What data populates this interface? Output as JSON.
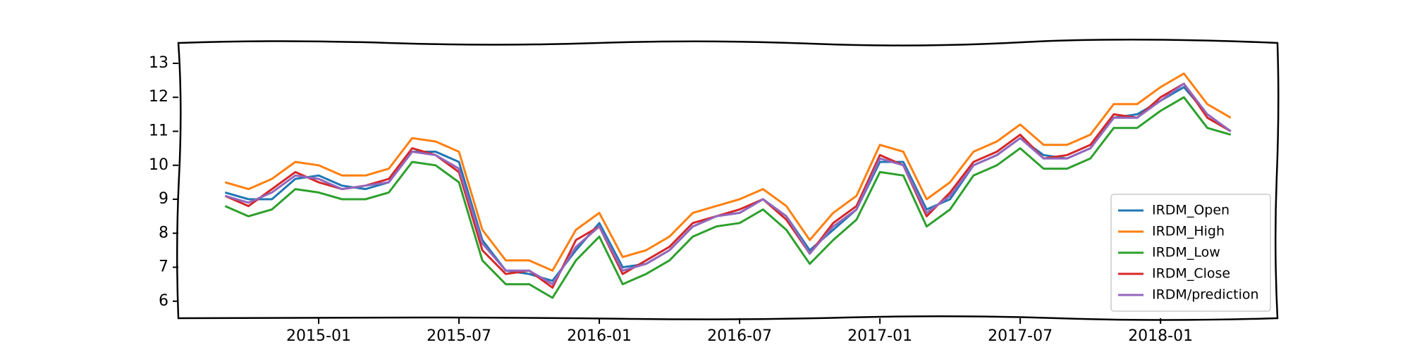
{
  "chart_data": {
    "type": "line",
    "x": [
      "2014-09",
      "2014-10",
      "2014-11",
      "2014-12",
      "2015-01",
      "2015-02",
      "2015-03",
      "2015-04",
      "2015-05",
      "2015-06",
      "2015-07",
      "2015-08",
      "2015-09",
      "2015-10",
      "2015-11",
      "2015-12",
      "2016-01",
      "2016-02",
      "2016-03",
      "2016-04",
      "2016-05",
      "2016-06",
      "2016-07",
      "2016-08",
      "2016-09",
      "2016-10",
      "2016-11",
      "2016-12",
      "2017-01",
      "2017-02",
      "2017-03",
      "2017-04",
      "2017-05",
      "2017-06",
      "2017-07",
      "2017-08",
      "2017-09",
      "2017-10",
      "2017-11",
      "2017-12",
      "2018-01",
      "2018-02",
      "2018-03",
      "2018-04"
    ],
    "series": [
      {
        "name": "IRDM_Open",
        "color": "#1f77b4",
        "values": [
          9.2,
          9.0,
          9.0,
          9.6,
          9.7,
          9.4,
          9.3,
          9.5,
          10.4,
          10.4,
          10.1,
          7.8,
          6.9,
          6.8,
          6.6,
          7.5,
          8.3,
          7.0,
          7.1,
          7.5,
          8.2,
          8.5,
          8.6,
          9.0,
          8.5,
          7.5,
          8.1,
          8.7,
          10.1,
          10.1,
          8.7,
          9.0,
          10.0,
          10.3,
          10.8,
          10.3,
          10.2,
          10.5,
          11.4,
          11.5,
          11.9,
          12.3,
          11.5,
          11.0
        ]
      },
      {
        "name": "IRDM_High",
        "color": "#ff7f0e",
        "values": [
          9.5,
          9.3,
          9.6,
          10.1,
          10.0,
          9.7,
          9.7,
          9.9,
          10.8,
          10.7,
          10.4,
          8.1,
          7.2,
          7.2,
          6.9,
          8.1,
          8.6,
          7.3,
          7.5,
          7.9,
          8.6,
          8.8,
          9.0,
          9.3,
          8.8,
          7.8,
          8.6,
          9.1,
          10.6,
          10.4,
          9.0,
          9.5,
          10.4,
          10.7,
          11.2,
          10.6,
          10.6,
          10.9,
          11.8,
          11.8,
          12.3,
          12.7,
          11.8,
          11.4
        ]
      },
      {
        "name": "IRDM_Low",
        "color": "#2ca02c",
        "values": [
          8.8,
          8.5,
          8.7,
          9.3,
          9.2,
          9.0,
          9.0,
          9.2,
          10.1,
          10.0,
          9.5,
          7.2,
          6.5,
          6.5,
          6.1,
          7.2,
          7.9,
          6.5,
          6.8,
          7.2,
          7.9,
          8.2,
          8.3,
          8.7,
          8.1,
          7.1,
          7.8,
          8.4,
          9.8,
          9.7,
          8.2,
          8.7,
          9.7,
          10.0,
          10.5,
          9.9,
          9.9,
          10.2,
          11.1,
          11.1,
          11.6,
          12.0,
          11.1,
          10.9
        ]
      },
      {
        "name": "IRDM_Close",
        "color": "#d62728",
        "values": [
          9.1,
          8.8,
          9.3,
          9.8,
          9.5,
          9.3,
          9.4,
          9.6,
          10.5,
          10.3,
          9.8,
          7.5,
          6.8,
          6.9,
          6.4,
          7.8,
          8.2,
          6.8,
          7.2,
          7.6,
          8.3,
          8.5,
          8.7,
          9.0,
          8.4,
          7.4,
          8.3,
          8.8,
          10.3,
          10.0,
          8.5,
          9.2,
          10.1,
          10.4,
          10.9,
          10.2,
          10.3,
          10.6,
          11.5,
          11.4,
          12.0,
          12.4,
          11.4,
          11.0
        ]
      },
      {
        "name": "IRDM/prediction",
        "color": "#9467bd",
        "values": [
          9.1,
          8.9,
          9.2,
          9.7,
          9.6,
          9.3,
          9.4,
          9.5,
          10.4,
          10.3,
          9.9,
          7.7,
          6.9,
          6.9,
          6.5,
          7.6,
          8.2,
          6.9,
          7.1,
          7.5,
          8.2,
          8.5,
          8.6,
          9.0,
          8.5,
          7.4,
          8.2,
          8.7,
          10.2,
          10.0,
          8.6,
          9.1,
          10.0,
          10.3,
          10.8,
          10.2,
          10.2,
          10.5,
          11.4,
          11.4,
          11.9,
          12.4,
          11.5,
          11.0
        ]
      }
    ],
    "xlim": [
      "2014-07",
      "2018-06"
    ],
    "xticks": [
      "2015-01",
      "2015-07",
      "2016-01",
      "2016-07",
      "2017-01",
      "2017-07",
      "2018-01"
    ],
    "ylim": [
      5.5,
      13.6
    ],
    "yticks": [
      6,
      7,
      8,
      9,
      10,
      11,
      12,
      13
    ],
    "legend": "lower right"
  }
}
